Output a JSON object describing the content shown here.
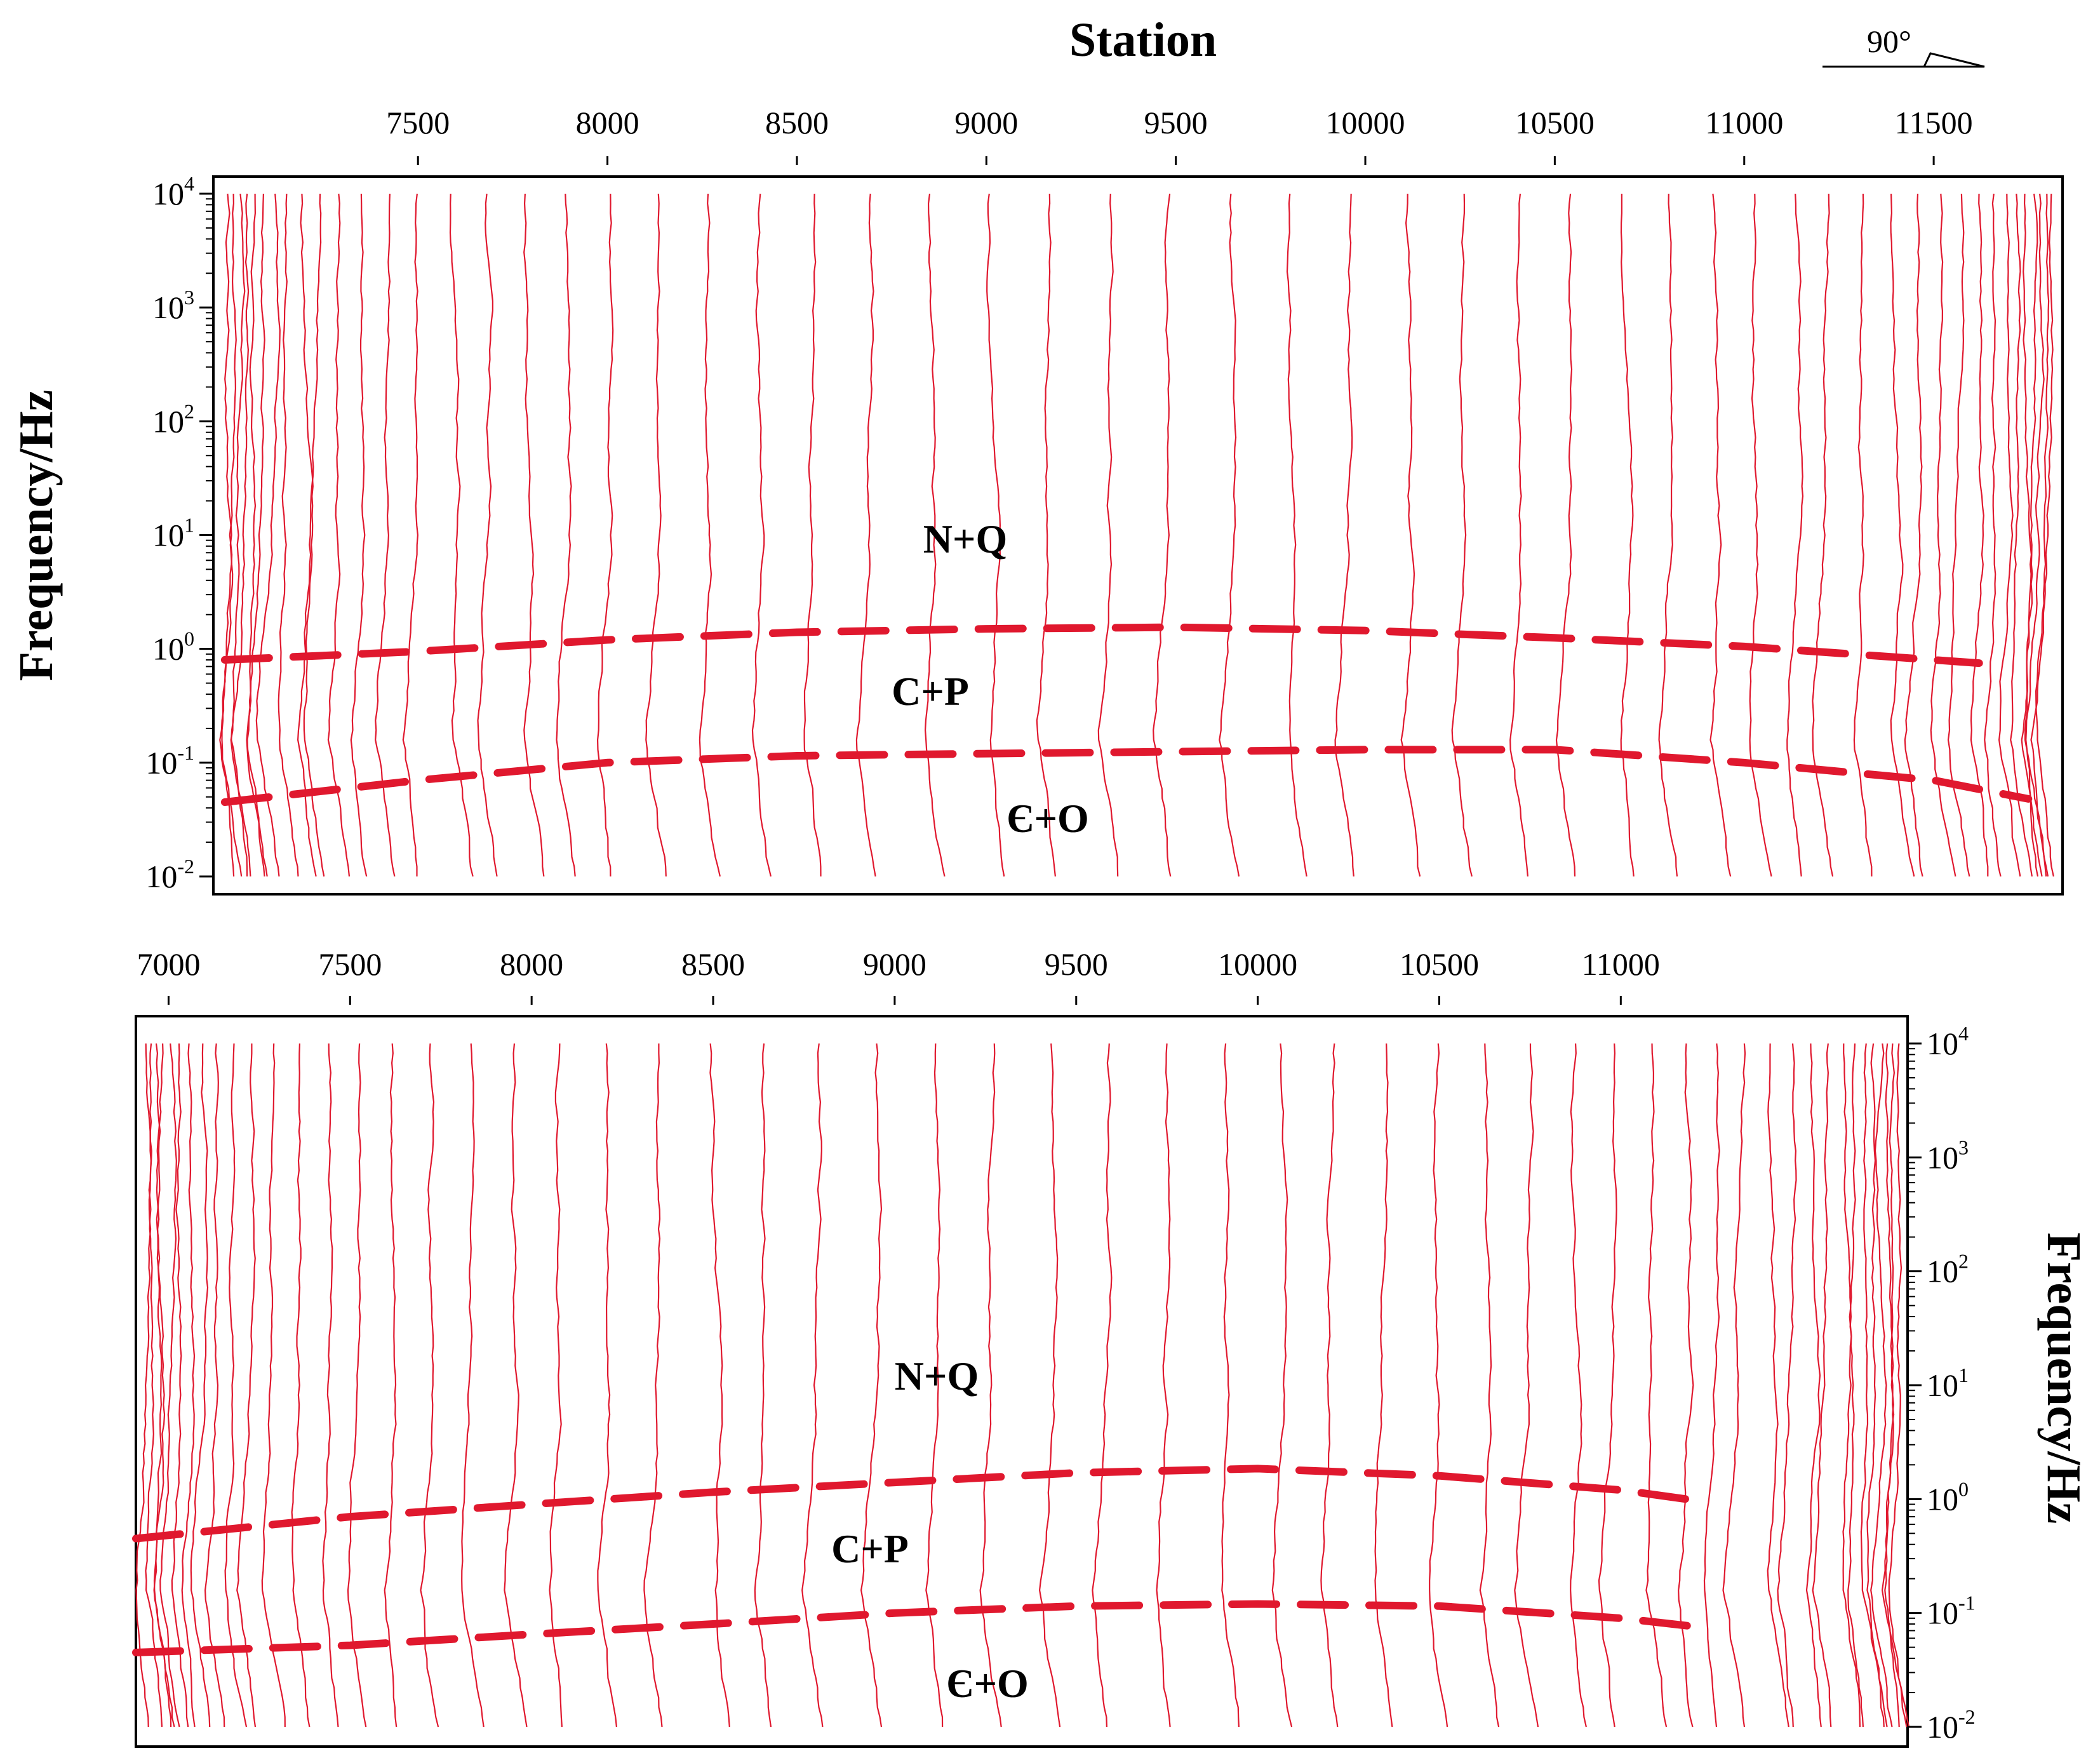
{
  "figure": {
    "axis_title": "Station",
    "compass": {
      "label": "90°"
    },
    "trace_color": "#e0182e",
    "boundary_color": "#e0182e"
  },
  "chart_data": [
    {
      "type": "line",
      "panel": "top",
      "title": "",
      "xlabel": "Station",
      "ylabel": "Frequency/Hz",
      "x_axis_position": "top",
      "y_axis_position": "left",
      "xlim": [
        6960,
        11840
      ],
      "xticks": [
        "7500",
        "8000",
        "8500",
        "9000",
        "9500",
        "10000",
        "10500",
        "11000",
        "11500"
      ],
      "ylim": [
        0.01,
        10000
      ],
      "yscale": "log",
      "ytick_exponents": [
        "4",
        "3",
        "2",
        "1",
        "0",
        "-1",
        "-2"
      ],
      "regions": [
        "N+Q",
        "C+P",
        "Є+O"
      ],
      "series": [
        {
          "name": "N+Q / C+P boundary",
          "x": [
            6990,
            7500,
            8000,
            8500,
            9000,
            9500,
            10000,
            10500,
            11000,
            11500,
            11620
          ],
          "y": [
            0.8,
            0.95,
            1.2,
            1.4,
            1.5,
            1.55,
            1.45,
            1.25,
            1.05,
            0.8,
            0.75
          ]
        },
        {
          "name": "C+P / Є+O boundary",
          "x": [
            6990,
            7500,
            8000,
            8500,
            9000,
            9500,
            10000,
            10500,
            11000,
            11500,
            11750
          ],
          "y": [
            0.045,
            0.07,
            0.1,
            0.115,
            0.12,
            0.125,
            0.13,
            0.13,
            0.1,
            0.07,
            0.048
          ]
        }
      ]
    },
    {
      "type": "line",
      "panel": "bottom",
      "title": "",
      "xlabel": "",
      "ylabel": "Frequency/Hz",
      "x_axis_position": "top",
      "y_axis_position": "right",
      "xlim": [
        6910,
        11790
      ],
      "xticks": [
        "7000",
        "7500",
        "8000",
        "8500",
        "9000",
        "9500",
        "10000",
        "10500",
        "11000"
      ],
      "ylim": [
        0.01,
        10000
      ],
      "yscale": "log",
      "ytick_exponents": [
        "4",
        "3",
        "2",
        "1",
        "0",
        "-1",
        "-2"
      ],
      "regions": [
        "N+Q",
        "C+P",
        "Є+O"
      ],
      "series": [
        {
          "name": "N+Q / C+P boundary",
          "x": [
            6910,
            7500,
            8000,
            8500,
            9000,
            9500,
            10000,
            10500,
            11000,
            11230
          ],
          "y": [
            0.45,
            0.7,
            0.9,
            1.15,
            1.4,
            1.7,
            1.85,
            1.6,
            1.2,
            0.95
          ]
        },
        {
          "name": "C+P / Є+O boundary",
          "x": [
            6910,
            7500,
            8000,
            8500,
            9000,
            9500,
            10000,
            10500,
            11000,
            11220
          ],
          "y": [
            0.045,
            0.052,
            0.065,
            0.08,
            0.1,
            0.115,
            0.12,
            0.115,
            0.09,
            0.075
          ]
        }
      ]
    }
  ]
}
